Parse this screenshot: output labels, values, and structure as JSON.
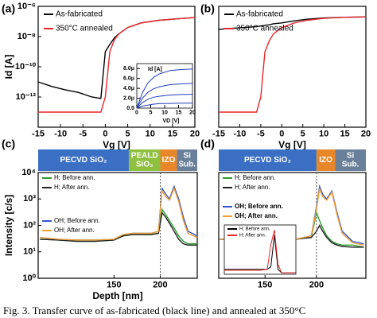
{
  "chart_data": [
    {
      "type": "line",
      "panel_label": "(a)",
      "x_label": "Vg [V]",
      "y_label": "Id [A]",
      "log_y": true,
      "xlim": [
        -15,
        20
      ],
      "ylim": [
        1e-14,
        1e-06
      ],
      "xticks": [
        -15,
        -10,
        -5,
        0,
        5,
        10,
        15,
        20
      ],
      "yticks": [
        {
          "value": 1e-12,
          "label": "10⁻¹²"
        },
        {
          "value": 1e-10,
          "label": "10⁻¹⁰"
        },
        {
          "value": 1e-08,
          "label": "10⁻⁸"
        },
        {
          "value": 1e-06,
          "label": "10⁻⁶"
        }
      ],
      "x": [
        -15,
        -12,
        -9,
        -6,
        -3,
        -1,
        0,
        1,
        2,
        3,
        5,
        8,
        12,
        16,
        20
      ],
      "series": [
        {
          "name": "As-fabricated",
          "color": "#000000",
          "values": [
            1e-11,
            5e-12,
            3e-12,
            2e-12,
            1e-12,
            8e-13,
            1e-09,
            3e-09,
            8e-09,
            1.5e-08,
            4e-08,
            8e-08,
            1.2e-07,
            1.5e-07,
            1.8e-07
          ]
        },
        {
          "name": "350°C annealed",
          "color": "#e8262b",
          "values": [
            1e-13,
            1e-13,
            1e-13,
            1e-13,
            1e-13,
            1e-13,
            1e-12,
            1e-09,
            6e-09,
            1.5e-08,
            4e-08,
            8e-08,
            1.2e-07,
            1.5e-07,
            1.8e-07
          ]
        }
      ]
    },
    {
      "type": "line",
      "x_label": "VD [V]",
      "y_label": "Id [A]",
      "xlim": [
        0,
        20
      ],
      "ylim": [
        0,
        9e-06
      ],
      "xticks": [
        0,
        5,
        10,
        15,
        20
      ],
      "yticks": [
        {
          "value": 0,
          "label": "0.0"
        },
        {
          "value": 2e-06,
          "label": "2.0μ"
        },
        {
          "value": 4e-06,
          "label": "4.0μ"
        },
        {
          "value": 6e-06,
          "label": "6.0μ"
        },
        {
          "value": 8e-06,
          "label": "8.0μ"
        }
      ],
      "x": [
        0,
        2,
        4,
        6,
        8,
        12,
        16,
        20
      ],
      "series": [
        {
          "color": "#1f3fbf",
          "values": [
            0,
            3.1e-06,
            5.1e-06,
            6.2e-06,
            6.9e-06,
            7.6e-06,
            7.8e-06,
            7.9e-06
          ]
        },
        {
          "color": "#1f3fbf",
          "values": [
            0,
            2e-06,
            3.2e-06,
            3.9e-06,
            4.3e-06,
            4.75e-06,
            4.9e-06,
            5e-06
          ]
        },
        {
          "color": "#1f3fbf",
          "values": [
            0,
            1.1e-06,
            1.8e-06,
            2.2e-06,
            2.4e-06,
            2.65e-06,
            2.75e-06,
            2.8e-06
          ]
        },
        {
          "color": "#1f3fbf",
          "values": [
            0,
            4e-07,
            6e-07,
            8e-07,
            9e-07,
            9.5e-07,
            1e-06,
            1e-06
          ]
        }
      ]
    },
    {
      "type": "line",
      "panel_label": "(b)",
      "x_label": "Vg [V]",
      "log_y": true,
      "xlim": [
        -15,
        20
      ],
      "ylim": [
        1e-14,
        1e-06
      ],
      "xticks": [
        -15,
        -10,
        -5,
        0,
        5,
        10,
        15,
        20
      ],
      "x": [
        -15,
        -12,
        -9,
        -6,
        -5,
        -4,
        -3,
        -2,
        0,
        3,
        6,
        10,
        15,
        20
      ],
      "series": [
        {
          "name": "As-fabricated",
          "color": "#000000",
          "values": [
            3e-08,
            3.5e-08,
            4e-08,
            4.5e-08,
            5e-08,
            5.5e-08,
            6e-08,
            7e-08,
            8e-08,
            1.1e-07,
            1.4e-07,
            1.7e-07,
            1.9e-07,
            2e-07
          ]
        },
        {
          "name": "350°C annealed",
          "color": "#e8262b",
          "values": [
            1e-13,
            1e-13,
            1e-13,
            1e-13,
            1e-12,
            1e-09,
            5e-09,
            1.5e-08,
            4e-08,
            8e-08,
            1.2e-07,
            1.6e-07,
            1.9e-07,
            2e-07
          ]
        }
      ]
    },
    {
      "type": "line",
      "panel_label": "(c)",
      "x_label": "Depth [nm]",
      "y_label": "Intensity [c/s]",
      "log_y": true,
      "xlim": [
        68,
        240
      ],
      "ylim": [
        1,
        10000
      ],
      "xticks": [
        150,
        200
      ],
      "yticks": [
        {
          "value": 1,
          "label": "10⁰"
        },
        {
          "value": 10,
          "label": "10¹"
        },
        {
          "value": 100,
          "label": "10²"
        },
        {
          "value": 1000,
          "label": "10³"
        },
        {
          "value": 10000,
          "label": "10⁴"
        }
      ],
      "marker_x": 200,
      "layers": [
        {
          "label": [
            "PECVD SiO₂"
          ],
          "start": 68,
          "end": 166,
          "color": "#3a6fc4"
        },
        {
          "label": [
            "PEALD",
            "SiO₂"
          ],
          "start": 166,
          "end": 200,
          "color": "#8fbf3f"
        },
        {
          "label": [
            "IZO"
          ],
          "start": 200,
          "end": 218,
          "color": "#e8872a"
        },
        {
          "label": [
            "Si",
            "Sub."
          ],
          "start": 218,
          "end": 240,
          "color": "#6a7f99"
        }
      ],
      "x": [
        70,
        90,
        110,
        130,
        150,
        160,
        170,
        190,
        198,
        202,
        206,
        210,
        215,
        220,
        225,
        230,
        240
      ],
      "series": [
        {
          "name": "H; Before ann.",
          "color": "#2a9d2a",
          "values": [
            30,
            28,
            25,
            25,
            28,
            40,
            45,
            45,
            50,
            400,
            250,
            150,
            80,
            40,
            25,
            20,
            20
          ]
        },
        {
          "name": "H; After ann.",
          "color": "#222222",
          "values": [
            30,
            28,
            25,
            25,
            28,
            40,
            45,
            45,
            50,
            300,
            200,
            120,
            60,
            30,
            20,
            18,
            18
          ]
        },
        {
          "name": "OH; Before ann.",
          "color": "#3355cc",
          "values": [
            35,
            30,
            28,
            28,
            30,
            45,
            50,
            50,
            60,
            2500,
            1500,
            1000,
            3000,
            1000,
            200,
            60,
            40
          ]
        },
        {
          "name": "OH; After ann.",
          "color": "#f0a030",
          "values": [
            35,
            30,
            28,
            28,
            30,
            45,
            50,
            50,
            60,
            2000,
            1200,
            900,
            2500,
            800,
            150,
            50,
            35
          ]
        }
      ]
    },
    {
      "type": "line",
      "panel_label": "(d)",
      "log_y": true,
      "xlim": [
        105,
        248
      ],
      "ylim": [
        1,
        10000
      ],
      "xticks": [
        150,
        200
      ],
      "marker_x": 200,
      "layers": [
        {
          "label": [
            "PECVD SiO₂"
          ],
          "start": 105,
          "end": 200,
          "color": "#3a6fc4"
        },
        {
          "label": [
            "IZO"
          ],
          "start": 200,
          "end": 218,
          "color": "#e8872a"
        },
        {
          "label": [
            "Si",
            "Sub."
          ],
          "start": 218,
          "end": 248,
          "color": "#6a7f99"
        }
      ],
      "x": [
        106,
        120,
        140,
        160,
        180,
        195,
        200,
        203,
        206,
        210,
        215,
        220,
        225,
        235,
        246
      ],
      "series": [
        {
          "name": "H; Before ann.",
          "color": "#2a9d2a",
          "values": [
            30,
            30,
            28,
            28,
            30,
            35,
            300,
            150,
            80,
            40,
            25,
            20,
            18,
            18,
            15
          ]
        },
        {
          "name": "H; After ann.",
          "color": "#222222",
          "values": [
            30,
            30,
            28,
            28,
            30,
            35,
            60,
            100,
            60,
            35,
            22,
            18,
            16,
            15,
            15
          ]
        },
        {
          "name": "OH; Before ann.",
          "color": "#3355cc",
          "values": [
            30,
            30,
            28,
            28,
            30,
            40,
            500,
            3000,
            1500,
            1000,
            2000,
            300,
            60,
            25,
            20
          ]
        },
        {
          "name": "OH; After ann.",
          "color": "#f0a030",
          "values": [
            30,
            30,
            28,
            28,
            30,
            40,
            400,
            2500,
            1200,
            900,
            1800,
            250,
            50,
            22,
            18
          ]
        }
      ]
    },
    {
      "type": "line",
      "xlim": [
        0,
        10
      ],
      "ylim": [
        0,
        10
      ],
      "x": [
        0,
        1,
        2,
        3,
        4,
        5,
        6,
        6.5,
        7,
        7.5,
        8,
        9,
        10
      ],
      "series": [
        {
          "name": "H; Before ann.",
          "color": "#000000",
          "values": [
            1,
            1,
            1,
            1,
            1,
            1,
            1,
            1.5,
            8,
            1,
            0.3,
            0.3,
            0.3
          ]
        },
        {
          "name": "H; After ann.",
          "color": "#e8262b",
          "values": [
            0.8,
            0.8,
            0.8,
            0.8,
            0.8,
            0.8,
            1,
            6,
            9,
            2,
            0.3,
            0.3,
            0.3
          ]
        }
      ]
    }
  ],
  "caption": "Fig. 3.   Transfer curve of as-fabricated (black line) and annealed at 350°C"
}
